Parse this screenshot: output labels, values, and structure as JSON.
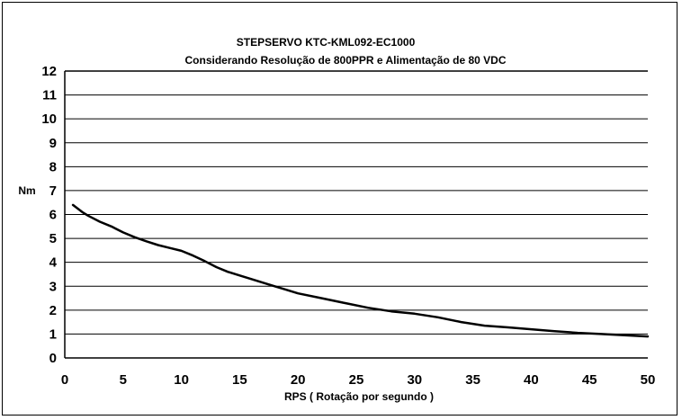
{
  "chart_data": {
    "type": "line",
    "title": "STEPSERVO   KTC-KML092-EC1000",
    "subtitle": "Considerando  Resolução de 800PPR e Alimentação de 80 VDC",
    "xlabel": "RPS ( Rotação por segundo )",
    "ylabel": "Nm",
    "xlim": [
      0,
      50
    ],
    "ylim": [
      0,
      12
    ],
    "x_ticks": [
      "0",
      "5",
      "10",
      "15",
      "20",
      "25",
      "30",
      "35",
      "40",
      "45",
      "50"
    ],
    "y_ticks": [
      "0",
      "1",
      "2",
      "3",
      "4",
      "5",
      "6",
      "7",
      "8",
      "9",
      "10",
      "11",
      "12"
    ],
    "grid": "horizontal",
    "legend": "none",
    "series": [
      {
        "color": "#000000",
        "x": [
          0.7,
          1.5,
          2,
          3,
          4,
          5,
          6,
          7,
          8,
          9,
          10,
          11,
          12,
          13,
          14,
          15,
          16,
          17,
          18,
          19,
          20,
          22,
          24,
          26,
          28,
          30,
          32,
          34,
          36,
          38,
          40,
          42,
          44,
          46,
          48,
          50
        ],
        "y": [
          6.4,
          6.1,
          5.95,
          5.7,
          5.5,
          5.25,
          5.05,
          4.88,
          4.72,
          4.6,
          4.48,
          4.28,
          4.05,
          3.8,
          3.6,
          3.45,
          3.3,
          3.15,
          3.0,
          2.85,
          2.7,
          2.5,
          2.3,
          2.1,
          1.95,
          1.85,
          1.7,
          1.5,
          1.35,
          1.28,
          1.2,
          1.12,
          1.05,
          1.0,
          0.95,
          0.9
        ]
      }
    ]
  }
}
